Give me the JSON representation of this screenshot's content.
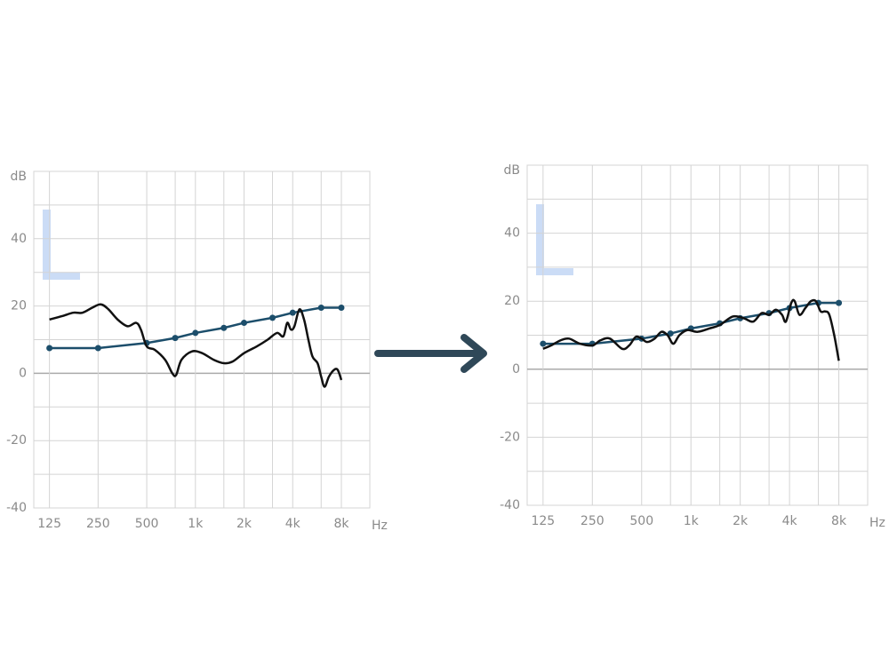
{
  "chart_data": [
    {
      "type": "line",
      "y_label": "dB",
      "x_label": "Hz",
      "x_scale": "log",
      "xlim": [
        100,
        12000
      ],
      "ylim": [
        -40,
        60
      ],
      "xticks": [
        125,
        250,
        500,
        {
          "value": 1000,
          "label": "1k"
        },
        {
          "value": 2000,
          "label": "2k"
        },
        {
          "value": 4000,
          "label": "4k"
        },
        {
          "value": 8000,
          "label": "8k"
        }
      ],
      "xgrid": [
        750,
        1500,
        3000,
        6000
      ],
      "yticks": [
        -40,
        -20,
        0,
        20,
        40
      ],
      "ygrid": [
        -30,
        -10,
        10,
        30,
        50
      ],
      "grid": true,
      "series": [
        {
          "color": "#1c4e6b",
          "markers": true,
          "x": [
            125,
            250,
            500,
            750,
            1000,
            1500,
            2000,
            3000,
            4000,
            6000,
            8000
          ],
          "values": [
            7.5,
            7.5,
            9,
            10.5,
            12,
            13.5,
            15,
            16.5,
            18,
            19.5,
            19.5
          ]
        },
        {
          "color": "#111111",
          "markers": false,
          "x": [
            125,
            150,
            175,
            200,
            230,
            260,
            290,
            330,
            380,
            430,
            460,
            500,
            560,
            650,
            720,
            760,
            820,
            950,
            1100,
            1300,
            1500,
            1700,
            2000,
            2400,
            2800,
            3200,
            3500,
            3700,
            3900,
            4100,
            4400,
            4700,
            5000,
            5300,
            5700,
            6000,
            6300,
            6700,
            7200,
            7600,
            8000
          ],
          "values": [
            16,
            17,
            18,
            18,
            19.5,
            20.5,
            19,
            16,
            14,
            15,
            13,
            8,
            7,
            4,
            0,
            -0.5,
            4,
            6.5,
            6,
            4,
            3,
            3.5,
            6,
            8,
            10,
            12,
            11,
            15,
            13,
            14,
            19,
            16,
            10,
            5,
            3,
            -1,
            -4,
            -1,
            1,
            1,
            -2
          ]
        }
      ]
    },
    {
      "type": "line",
      "y_label": "dB",
      "x_label": "Hz",
      "x_scale": "log",
      "xlim": [
        100,
        12000
      ],
      "ylim": [
        -40,
        60
      ],
      "xticks": [
        125,
        250,
        500,
        {
          "value": 1000,
          "label": "1k"
        },
        {
          "value": 2000,
          "label": "2k"
        },
        {
          "value": 4000,
          "label": "4k"
        },
        {
          "value": 8000,
          "label": "8k"
        }
      ],
      "xgrid": [
        750,
        1500,
        3000,
        6000
      ],
      "yticks": [
        -40,
        -20,
        0,
        20,
        40
      ],
      "ygrid": [
        -30,
        -10,
        10,
        30,
        50
      ],
      "grid": true,
      "series": [
        {
          "color": "#1c4e6b",
          "markers": true,
          "x": [
            125,
            250,
            500,
            750,
            1000,
            1500,
            2000,
            3000,
            4000,
            6000,
            8000
          ],
          "values": [
            7.5,
            7.5,
            9,
            10.5,
            12,
            13.5,
            15,
            16.5,
            18,
            19.5,
            19.5
          ]
        },
        {
          "color": "#111111",
          "markers": false,
          "x": [
            125,
            140,
            160,
            180,
            210,
            250,
            280,
            320,
            380,
            420,
            460,
            500,
            540,
            600,
            660,
            720,
            780,
            850,
            950,
            1100,
            1300,
            1500,
            1800,
            2100,
            2400,
            2700,
            3000,
            3300,
            3600,
            3800,
            4100,
            4300,
            4600,
            5000,
            5400,
            5800,
            6200,
            6600,
            7000,
            7500,
            8000
          ],
          "values": [
            6,
            7,
            8.5,
            9,
            7.5,
            7,
            8.5,
            9,
            6,
            7,
            9.5,
            9,
            8,
            9,
            11,
            10,
            7.5,
            10,
            11.5,
            11,
            12,
            13,
            15.5,
            15,
            14,
            16.5,
            16,
            17.5,
            16,
            14,
            19.5,
            20,
            16,
            18,
            20,
            20,
            17,
            17,
            16,
            10,
            2.5
          ]
        }
      ]
    }
  ]
}
